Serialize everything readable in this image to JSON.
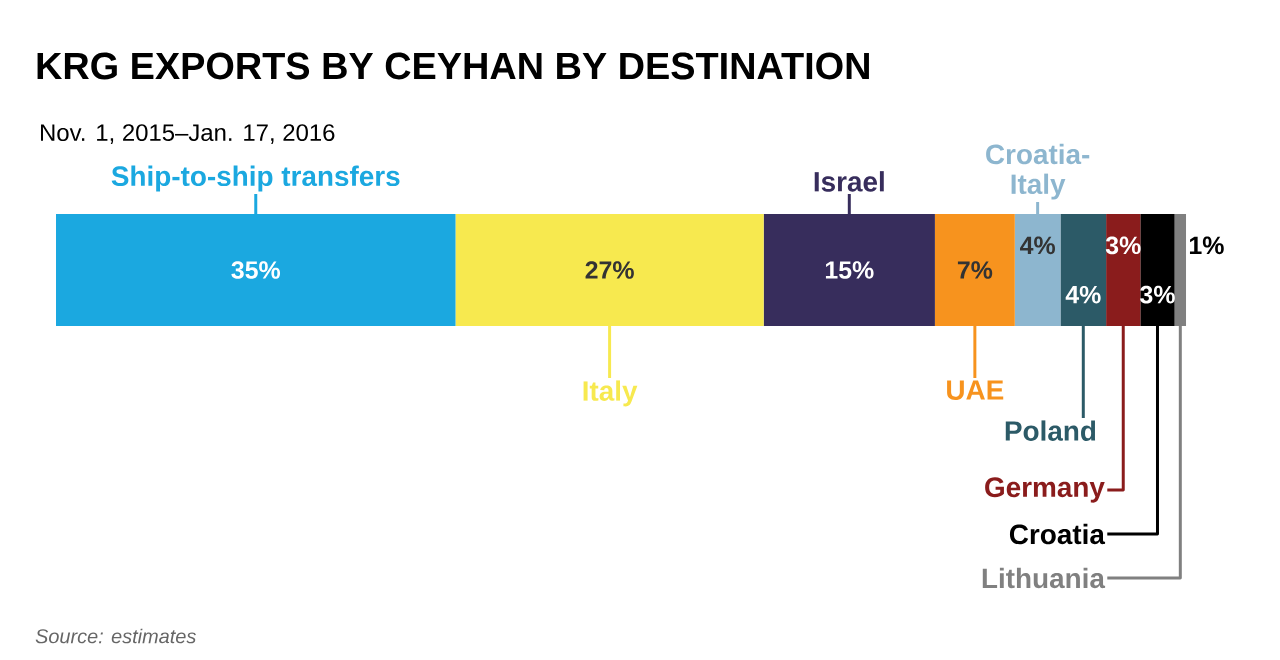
{
  "chart_data": {
    "type": "bar",
    "stacked": true,
    "orientation": "horizontal",
    "legend": "bottom",
    "title": "KRG EXPORTS BY CEYHAN BY DESTINATION",
    "subtitle": "Nov. 1, 2015–Jan. 17, 2016",
    "annotations": [
      "Source: estimates"
    ],
    "categories": [
      null
    ],
    "series": [
      {
        "name": "Ship-to-ship transfers",
        "color": "#1ba8e0",
        "values": [
          35
        ],
        "value_labels": [
          "35%"
        ]
      },
      {
        "name": "Italy",
        "color": "#f7e94f",
        "values": [
          27
        ],
        "value_labels": [
          "27%"
        ]
      },
      {
        "name": "Israel",
        "color": "#372d5c",
        "values": [
          15
        ],
        "value_labels": [
          "15%"
        ]
      },
      {
        "name": "UAE",
        "color": "#f7931e",
        "values": [
          7
        ],
        "value_labels": [
          "7%"
        ]
      },
      {
        "name": "Croatia-Italy",
        "color": "#8db6cf",
        "values": [
          4
        ],
        "value_labels": [
          "4%"
        ]
      },
      {
        "name": "Poland",
        "color": "#2c5a67",
        "values": [
          4
        ],
        "value_labels": [
          "4%"
        ]
      },
      {
        "name": "Germany",
        "color": "#8a1c1c",
        "values": [
          3
        ],
        "value_labels": [
          "3%"
        ]
      },
      {
        "name": "Croatia",
        "color": "#000000",
        "values": [
          3
        ],
        "value_labels": [
          "3%"
        ]
      },
      {
        "name": "Lithuania",
        "color": "#808080",
        "values": [
          1
        ],
        "value_labels": [
          "1%"
        ]
      }
    ]
  }
}
